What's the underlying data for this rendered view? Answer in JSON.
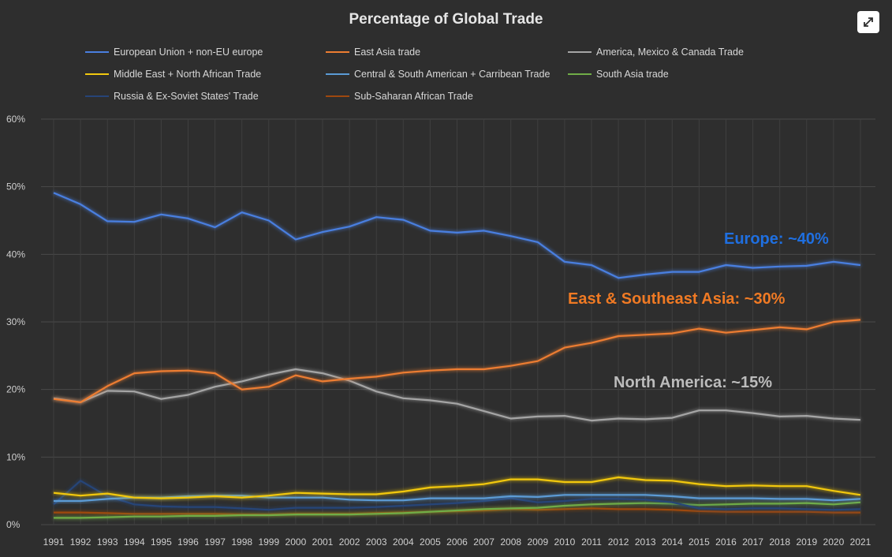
{
  "chart_data": {
    "type": "line",
    "title": "Percentage of Global Trade",
    "x": [
      "1991",
      "1992",
      "1993",
      "1994",
      "1995",
      "1996",
      "1997",
      "1998",
      "1999",
      "2000",
      "2001",
      "2002",
      "2003",
      "2004",
      "2005",
      "2006",
      "2007",
      "2008",
      "2009",
      "2010",
      "2011",
      "2012",
      "2013",
      "2014",
      "2015",
      "2016",
      "2017",
      "2018",
      "2019",
      "2020",
      "2021"
    ],
    "ylim": [
      0,
      60
    ],
    "yticks": [
      "0%",
      "10%",
      "20%",
      "30%",
      "40%",
      "50%",
      "60%"
    ],
    "grid": true,
    "legend": "top",
    "series": [
      {
        "name": "European Union + non-EU europe",
        "color": "#4a7fe0",
        "values": [
          49.1,
          47.4,
          44.9,
          44.8,
          45.9,
          45.3,
          44.0,
          46.2,
          45.0,
          42.2,
          43.3,
          44.1,
          45.5,
          45.1,
          43.5,
          43.2,
          43.5,
          42.7,
          41.8,
          38.9,
          38.4,
          36.5,
          37.0,
          37.4,
          37.4,
          38.4,
          38.0,
          38.2,
          38.3,
          38.9,
          38.4
        ]
      },
      {
        "name": "East Asia trade",
        "color": "#ed7d31",
        "values": [
          18.6,
          18.1,
          20.5,
          22.4,
          22.7,
          22.8,
          22.4,
          20.0,
          20.4,
          22.1,
          21.2,
          21.6,
          21.9,
          22.5,
          22.8,
          23.0,
          23.0,
          23.5,
          24.2,
          26.2,
          26.9,
          27.9,
          28.1,
          28.3,
          29.0,
          28.4,
          28.8,
          29.2,
          28.9,
          30.0,
          30.3
        ]
      },
      {
        "name": "America, Mexico & Canada Trade",
        "color": "#a5a5a5",
        "values": [
          18.7,
          18.1,
          19.8,
          19.7,
          18.6,
          19.2,
          20.4,
          21.2,
          22.2,
          23.0,
          22.4,
          21.3,
          19.7,
          18.7,
          18.4,
          17.9,
          16.8,
          15.7,
          16.0,
          16.1,
          15.4,
          15.7,
          15.6,
          15.8,
          16.9,
          16.9,
          16.5,
          16.0,
          16.1,
          15.7,
          15.5
        ]
      },
      {
        "name": "Middle East + North African Trade",
        "color": "#f2c80f",
        "values": [
          4.7,
          4.3,
          4.6,
          4.0,
          3.9,
          4.0,
          4.2,
          4.0,
          4.3,
          4.7,
          4.6,
          4.5,
          4.5,
          4.9,
          5.5,
          5.7,
          6.0,
          6.7,
          6.7,
          6.3,
          6.3,
          7.0,
          6.6,
          6.5,
          6.0,
          5.7,
          5.8,
          5.7,
          5.7,
          5.0,
          4.4
        ]
      },
      {
        "name": "Central & South American + Carribean Trade",
        "color": "#5b9bd5",
        "values": [
          3.5,
          3.5,
          3.8,
          4.0,
          4.0,
          4.2,
          4.3,
          4.3,
          4.0,
          4.0,
          4.0,
          3.7,
          3.6,
          3.6,
          3.9,
          3.9,
          3.9,
          4.2,
          4.1,
          4.4,
          4.4,
          4.4,
          4.4,
          4.2,
          3.9,
          3.9,
          3.9,
          3.8,
          3.8,
          3.6,
          3.8
        ]
      },
      {
        "name": "South Asia trade",
        "color": "#70ad47",
        "values": [
          1.0,
          1.0,
          1.1,
          1.2,
          1.2,
          1.3,
          1.3,
          1.4,
          1.4,
          1.5,
          1.5,
          1.5,
          1.6,
          1.7,
          1.9,
          2.1,
          2.3,
          2.4,
          2.5,
          2.8,
          3.0,
          3.1,
          3.2,
          3.1,
          2.9,
          3.0,
          3.1,
          3.1,
          3.2,
          3.0,
          3.3
        ]
      },
      {
        "name": "Russia & Ex-Soviet States'  Trade",
        "color": "#264478",
        "values": [
          3.0,
          6.5,
          4.2,
          3.0,
          2.7,
          2.6,
          2.6,
          2.4,
          2.2,
          2.5,
          2.5,
          2.5,
          2.6,
          2.8,
          3.0,
          3.2,
          3.5,
          3.9,
          3.3,
          3.5,
          3.8,
          3.8,
          3.7,
          3.3,
          2.4,
          2.3,
          2.4,
          2.4,
          2.3,
          2.2,
          2.3
        ]
      },
      {
        "name": "Sub-Saharan African Trade",
        "color": "#9e480e",
        "values": [
          1.8,
          1.8,
          1.7,
          1.6,
          1.6,
          1.6,
          1.6,
          1.5,
          1.5,
          1.6,
          1.6,
          1.6,
          1.7,
          1.8,
          1.9,
          2.0,
          2.1,
          2.3,
          2.2,
          2.3,
          2.4,
          2.3,
          2.3,
          2.2,
          2.0,
          1.9,
          1.9,
          1.9,
          1.9,
          1.8,
          1.8
        ]
      }
    ],
    "annotations": [
      {
        "text": "Europe: ~40%",
        "color": "#1f6fe0"
      },
      {
        "text": "East & Southeast Asia: ~30%",
        "color": "#f07a24"
      },
      {
        "text": "North America: ~15%",
        "color": "#bcbcbc"
      }
    ]
  },
  "controls": {
    "expand_icon": "expand-arrows-icon"
  }
}
